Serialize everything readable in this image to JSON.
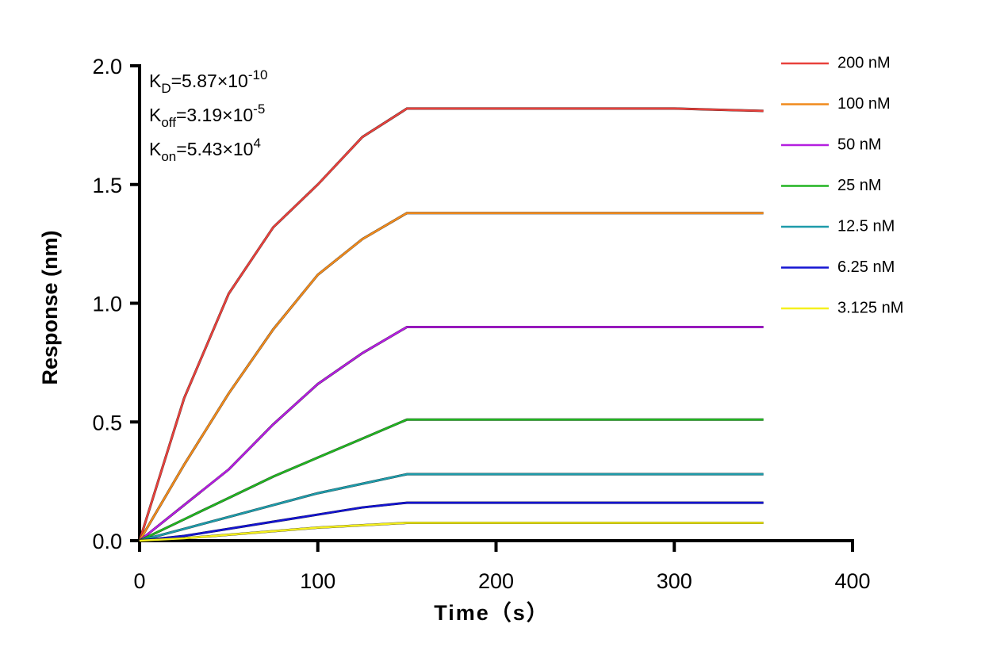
{
  "chart_data": {
    "type": "line",
    "x_label": "Time（s）",
    "y_label": "Response (nm)",
    "annotations": [
      {
        "base": "K",
        "sub": "D",
        "text": "=5.87×10",
        "sup": "-10"
      },
      {
        "base": "K",
        "sub": "off",
        "text": "=3.19×10",
        "sup": "-5"
      },
      {
        "base": "K",
        "sub": "on",
        "text": "=5.43×10",
        "sup": "4"
      }
    ],
    "x": [
      0,
      25,
      50,
      75,
      100,
      125,
      150,
      200,
      250,
      300,
      350
    ],
    "series": [
      {
        "name": "200 nM",
        "color": "#e8413c",
        "values": [
          0,
          0.6,
          1.04,
          1.32,
          1.5,
          1.7,
          1.82,
          1.82,
          1.82,
          1.82,
          1.81
        ]
      },
      {
        "name": "100 nM",
        "color": "#f08a1c",
        "values": [
          0,
          0.32,
          0.62,
          0.89,
          1.12,
          1.27,
          1.38,
          1.38,
          1.38,
          1.38,
          1.38
        ]
      },
      {
        "name": "50 nM",
        "color": "#b41ee0",
        "values": [
          0,
          0.15,
          0.3,
          0.49,
          0.66,
          0.79,
          0.9,
          0.9,
          0.9,
          0.9,
          0.9
        ]
      },
      {
        "name": "25 nM",
        "color": "#22b422",
        "values": [
          0,
          0.09,
          0.18,
          0.27,
          0.35,
          0.43,
          0.51,
          0.51,
          0.51,
          0.51,
          0.51
        ]
      },
      {
        "name": "12.5 nM",
        "color": "#1e9baa",
        "values": [
          0,
          0.05,
          0.1,
          0.15,
          0.2,
          0.24,
          0.28,
          0.28,
          0.28,
          0.28,
          0.28
        ]
      },
      {
        "name": "6.25 nM",
        "color": "#1414d2",
        "values": [
          0,
          0.02,
          0.05,
          0.08,
          0.11,
          0.14,
          0.16,
          0.16,
          0.16,
          0.16,
          0.16
        ]
      },
      {
        "name": "3.125 nM",
        "color": "#f5f01e",
        "values": [
          0,
          0.01,
          0.025,
          0.04,
          0.055,
          0.065,
          0.075,
          0.075,
          0.075,
          0.075,
          0.075
        ]
      }
    ],
    "xlim": [
      0,
      400
    ],
    "xticks": [
      0,
      100,
      200,
      300,
      400
    ],
    "ylim": [
      0,
      2
    ],
    "yticks": [
      {
        "value": 0,
        "label": "0.0"
      },
      0.5,
      {
        "value": 1,
        "label": "1.0"
      },
      1.5,
      {
        "value": 2,
        "label": "2.0"
      }
    ],
    "legend": "right"
  }
}
